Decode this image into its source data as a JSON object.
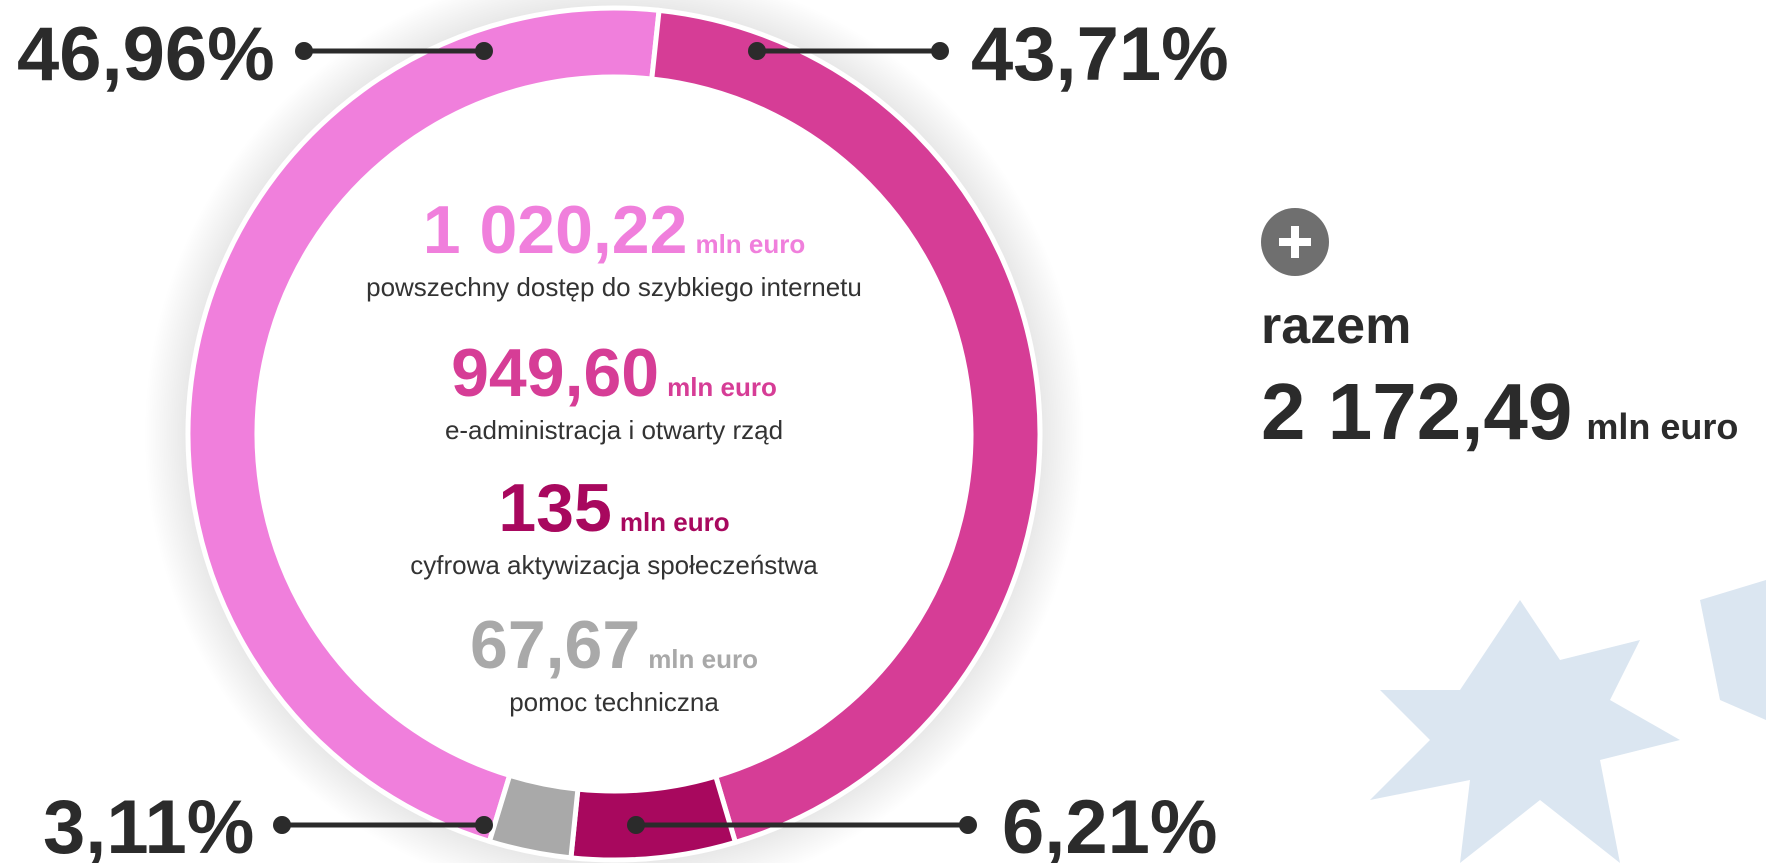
{
  "chart_data": {
    "type": "donut",
    "categories": [
      "powszechny dostęp do szybkiego internetu",
      "e-administracja i otwarty rząd",
      "cyfrowa aktywizacja społeczeństwa",
      "pomoc techniczna"
    ],
    "values": [
      46.96,
      43.71,
      6.21,
      3.11
    ],
    "value_labels": [
      "46,96%",
      "43,71%",
      "6,21%",
      "3,11%"
    ],
    "colors": [
      "#f07fdc",
      "#d63d96",
      "#a8085e",
      "#a9a9a9"
    ],
    "amounts": [
      1020.22,
      949.6,
      135,
      67.67
    ],
    "amount_labels": [
      "1 020,22",
      "949,60",
      "135",
      "67,67"
    ],
    "unit": "mln euro",
    "total_title": "razem",
    "total": 2172.49,
    "total_label": "2 172,49"
  }
}
